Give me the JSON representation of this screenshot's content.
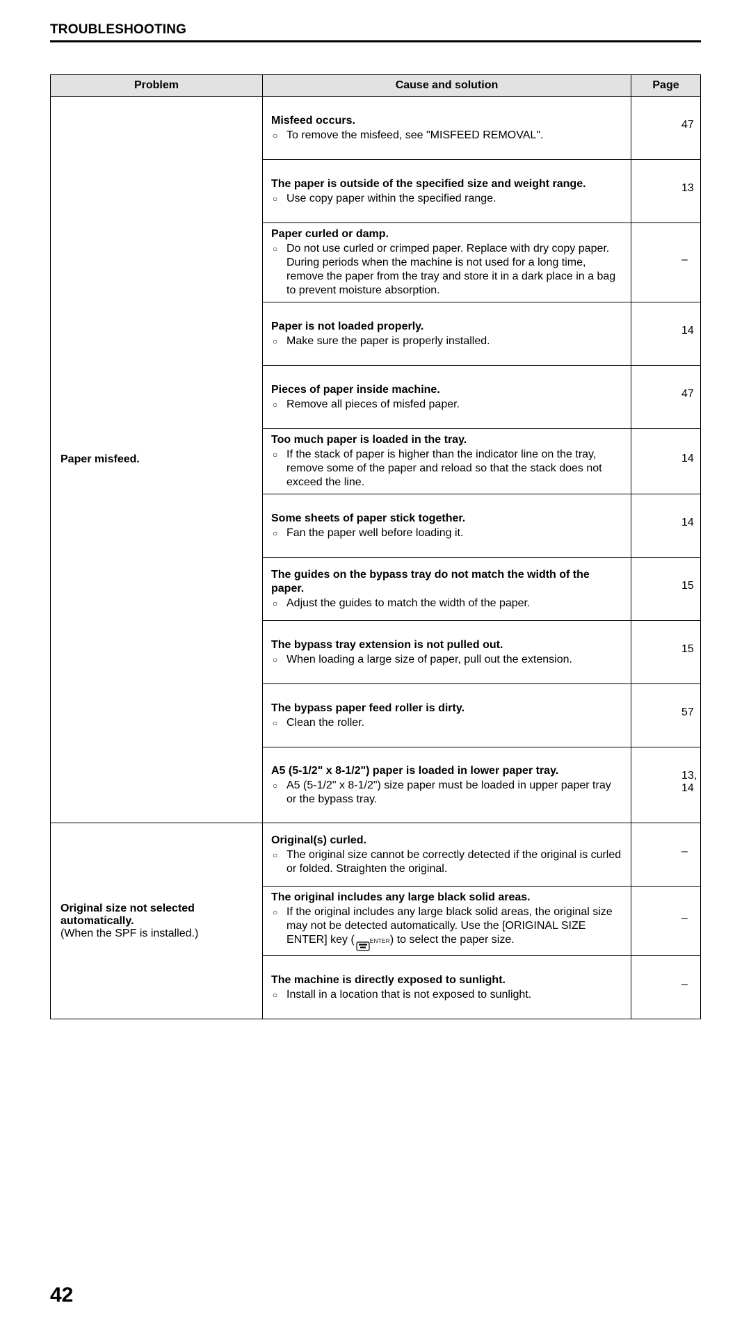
{
  "section_title": "TROUBLESHOOTING",
  "page_number": "42",
  "headers": {
    "problem": "Problem",
    "cause": "Cause and solution",
    "page": "Page"
  },
  "groups": [
    {
      "problem_bold": "Paper misfeed.",
      "problem_sub": "",
      "rows": [
        {
          "heading": "Misfeed occurs.",
          "solutions": [
            "To remove the misfeed, see \"MISFEED REMOVAL\"."
          ],
          "page": "47"
        },
        {
          "heading": "The paper is outside of the specified size and weight range.",
          "solutions": [
            "Use copy paper within the specified range."
          ],
          "page": "13"
        },
        {
          "heading": "Paper curled or damp.",
          "solutions": [
            "Do not use curled or crimped paper. Replace with dry copy paper. During periods when the machine is not used for a long time, remove the paper from the tray and store it in a dark place in a bag to prevent moisture absorption."
          ],
          "page": "–"
        },
        {
          "heading": "Paper is not loaded properly.",
          "solutions": [
            "Make sure the paper is properly installed."
          ],
          "page": "14"
        },
        {
          "heading": "Pieces of paper inside machine.",
          "solutions": [
            "Remove all pieces of misfed paper."
          ],
          "page": "47"
        },
        {
          "heading": "Too much paper is loaded in the tray.",
          "solutions": [
            "If the stack of paper is higher than the indicator line on the tray, remove some of the paper and reload so that the stack does not exceed the line."
          ],
          "page": "14"
        },
        {
          "heading": "Some sheets of paper stick together.",
          "solutions": [
            "Fan the paper well before loading it."
          ],
          "page": "14"
        },
        {
          "heading": "The guides on the bypass tray do not match the width of the paper.",
          "solutions": [
            "Adjust the guides to match the width of the paper."
          ],
          "page": "15"
        },
        {
          "heading": "The bypass tray extension is not pulled out.",
          "solutions": [
            "When loading a large size of paper, pull out the extension."
          ],
          "page": "15"
        },
        {
          "heading": "The bypass paper feed roller is dirty.",
          "solutions": [
            "Clean the roller."
          ],
          "page": "57"
        },
        {
          "heading": "A5 (5-1/2\" x 8-1/2\") paper is loaded in lower paper tray.",
          "solutions": [
            "A5 (5-1/2\" x 8-1/2\") size paper must be loaded in upper paper tray or the bypass tray."
          ],
          "page": "13, 14"
        }
      ]
    },
    {
      "problem_bold": "Original size not selected automatically.",
      "problem_sub": "(When the SPF is installed.)",
      "rows": [
        {
          "heading": "Original(s) curled.",
          "solutions": [
            "The original size cannot be correctly detected if the original is curled or folded. Straighten the original."
          ],
          "page": "–"
        },
        {
          "heading": "The original includes any large black solid areas.",
          "solutions": [
            "__ENTER_KEY_ROW__"
          ],
          "page": "–"
        },
        {
          "heading": "The machine is directly exposed to sunlight.",
          "solutions": [
            "Install in a location that is not exposed to sunlight."
          ],
          "page": "–"
        }
      ]
    }
  ],
  "enter_key_text": {
    "before": "If the original includes any large black solid areas, the original size may not be detected automatically. Use the [ORIGINAL SIZE ENTER] key (",
    "after": ") to select the paper size.",
    "label": "ENTER"
  }
}
